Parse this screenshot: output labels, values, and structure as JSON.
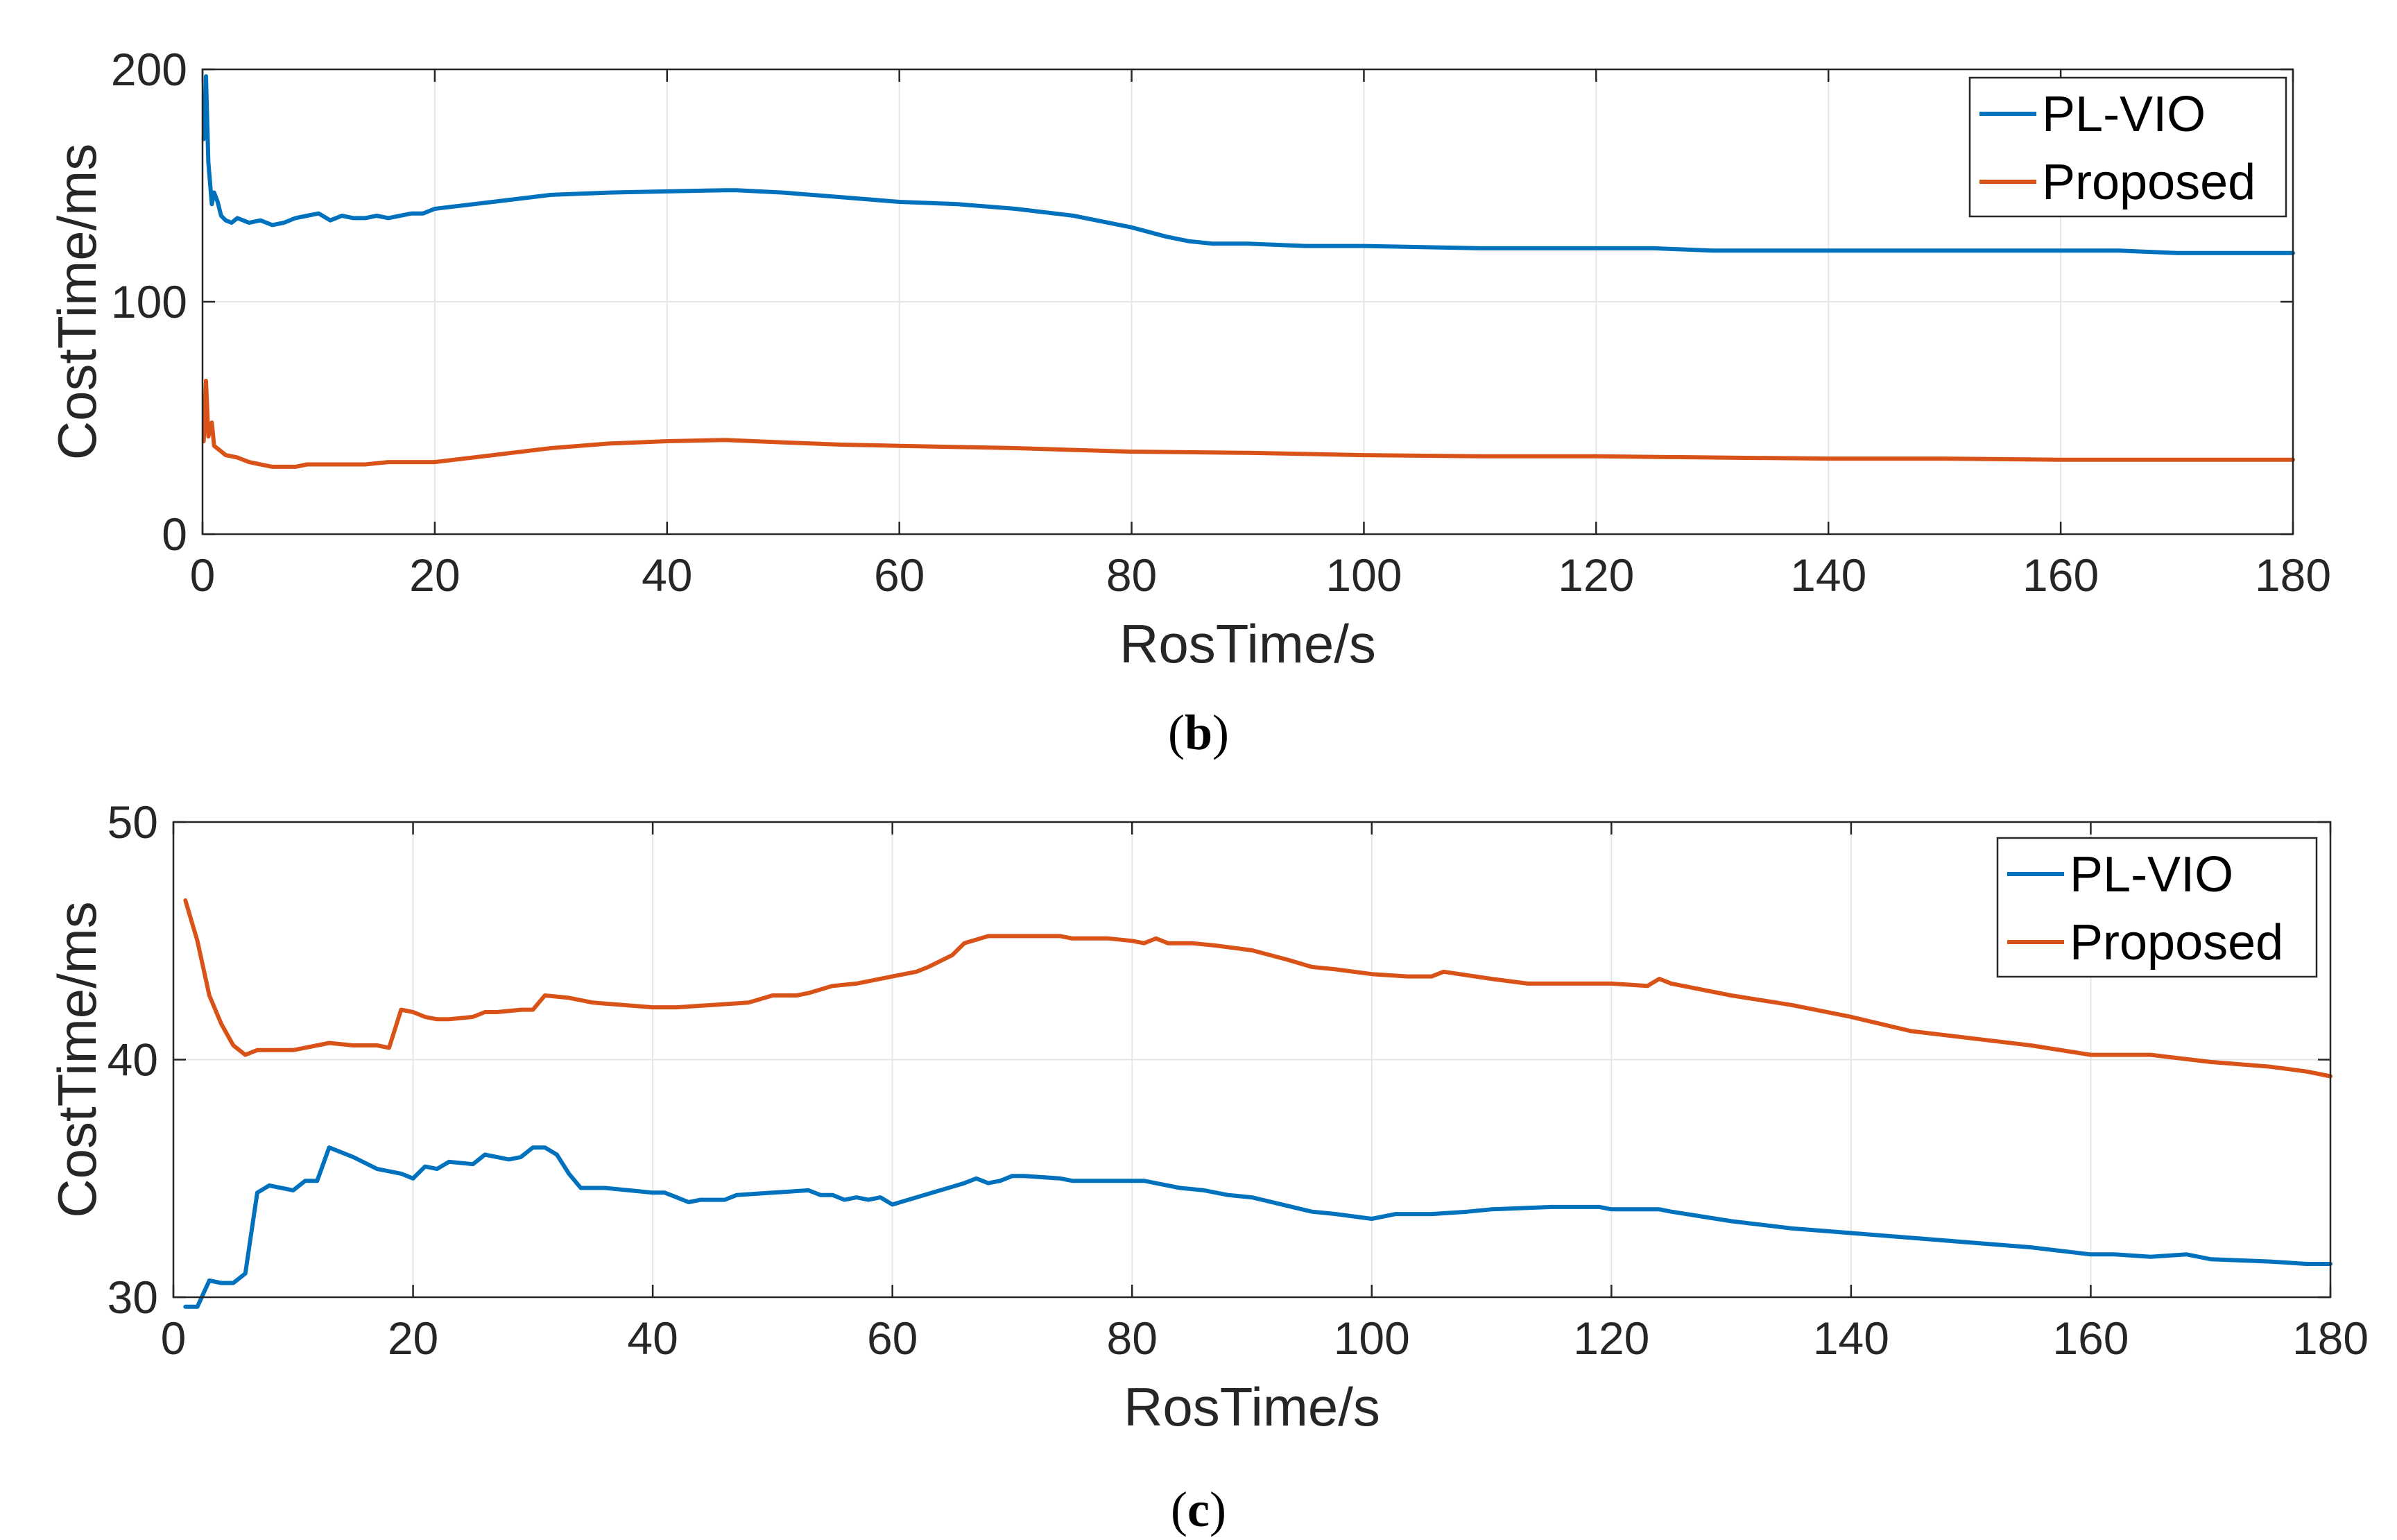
{
  "chart_data": [
    {
      "type": "line",
      "panel_label": "b",
      "xlabel": "RosTime/s",
      "ylabel": "CostTime/ms",
      "xlim": [
        0,
        180
      ],
      "ylim": [
        0,
        200
      ],
      "xticks": [
        0,
        20,
        40,
        60,
        80,
        100,
        120,
        140,
        160,
        180
      ],
      "yticks": [
        0,
        100,
        200
      ],
      "grid": true,
      "legend_position": "top-right",
      "series": [
        {
          "name": "PL-VIO",
          "color": "#0072BD",
          "x": [
            0.1,
            0.3,
            0.5,
            0.8,
            1.0,
            1.3,
            1.6,
            2.0,
            2.5,
            3.0,
            3.5,
            4.0,
            5.0,
            6.0,
            7.0,
            8.0,
            9.0,
            10.0,
            11.0,
            12.0,
            13.0,
            14.0,
            15.0,
            16.0,
            17.0,
            18.0,
            19.0,
            20.0,
            25.0,
            30.0,
            35.0,
            40.0,
            45.0,
            46.0,
            50.0,
            55.0,
            60.0,
            65.0,
            70.0,
            75.0,
            80.0,
            83.0,
            85.0,
            87.0,
            90.0,
            95.0,
            100.0,
            110.0,
            120.0,
            125.0,
            130.0,
            140.0,
            150.0,
            155.0,
            160.0,
            165.0,
            170.0,
            175.0,
            180.0
          ],
          "y": [
            170,
            197,
            160,
            142,
            147,
            143,
            137,
            135,
            134,
            136,
            135,
            134,
            135,
            133,
            134,
            136,
            137,
            138,
            135,
            137,
            136,
            136,
            137,
            136,
            137,
            138,
            138,
            140,
            143,
            146,
            147,
            147.5,
            148,
            148,
            147,
            145,
            143,
            142,
            140,
            137,
            132,
            128,
            126,
            125,
            125,
            124,
            124,
            123,
            123,
            123,
            122,
            122,
            122,
            122,
            122,
            122,
            121,
            121,
            121
          ]
        },
        {
          "name": "Proposed",
          "color": "#D95319",
          "x": [
            0.1,
            0.3,
            0.5,
            0.8,
            1.0,
            1.5,
            2.0,
            3.0,
            4.0,
            5.0,
            6.0,
            7.0,
            8.0,
            9.0,
            10.0,
            12.0,
            14.0,
            15.0,
            16.0,
            18.0,
            20.0,
            25.0,
            30.0,
            35.0,
            40.0,
            45.0,
            50.0,
            55.0,
            60.0,
            70.0,
            80.0,
            90.0,
            100.0,
            110.0,
            120.0,
            130.0,
            140.0,
            150.0,
            160.0,
            170.0,
            180.0
          ],
          "y": [
            40,
            66,
            42,
            48,
            38,
            36,
            34,
            33,
            31,
            30,
            29,
            29,
            29,
            30,
            30,
            30,
            30,
            30.5,
            31,
            31,
            31,
            34,
            37,
            39,
            40,
            40.5,
            39.5,
            38.5,
            38,
            37,
            35.5,
            35,
            34,
            33.5,
            33.5,
            33,
            32.5,
            32.5,
            32,
            32,
            32
          ]
        }
      ]
    },
    {
      "type": "line",
      "panel_label": "c",
      "xlabel": "RosTime/s",
      "ylabel": "CostTime/ms",
      "xlim": [
        0,
        180
      ],
      "ylim": [
        30,
        50
      ],
      "xticks": [
        0,
        20,
        40,
        60,
        80,
        100,
        120,
        140,
        160,
        180
      ],
      "yticks": [
        30,
        40,
        50
      ],
      "grid": true,
      "legend_position": "top-right",
      "series": [
        {
          "name": "PL-VIO",
          "color": "#0072BD",
          "x": [
            1,
            2,
            3,
            4,
            5,
            6,
            7,
            8,
            10,
            11,
            12,
            13,
            15,
            17,
            19,
            20,
            21,
            22,
            23,
            25,
            26,
            28,
            29,
            30,
            31,
            32,
            33,
            34,
            36,
            38,
            40,
            41,
            42,
            43,
            44,
            46,
            47,
            50,
            53,
            54,
            55,
            56,
            57,
            58,
            59,
            60,
            62,
            64,
            66,
            67,
            68,
            69,
            70,
            71,
            74,
            75,
            78,
            81,
            84,
            86,
            88,
            90,
            95,
            97,
            100,
            102,
            105,
            108,
            110,
            115,
            119,
            120,
            124,
            125,
            130,
            135,
            140,
            145,
            150,
            155,
            160,
            162,
            165,
            168,
            170,
            175,
            178,
            180
          ],
          "y": [
            29.6,
            29.6,
            30.7,
            30.6,
            30.6,
            31.0,
            34.4,
            34.7,
            34.5,
            34.9,
            34.9,
            36.3,
            35.9,
            35.4,
            35.2,
            35.0,
            35.5,
            35.4,
            35.7,
            35.6,
            36.0,
            35.8,
            35.9,
            36.3,
            36.3,
            36.0,
            35.2,
            34.6,
            34.6,
            34.5,
            34.4,
            34.4,
            34.2,
            34.0,
            34.1,
            34.1,
            34.3,
            34.4,
            34.5,
            34.3,
            34.3,
            34.1,
            34.2,
            34.1,
            34.2,
            33.9,
            34.2,
            34.5,
            34.8,
            35.0,
            34.8,
            34.9,
            35.1,
            35.1,
            35.0,
            34.9,
            34.9,
            34.9,
            34.6,
            34.5,
            34.3,
            34.2,
            33.6,
            33.5,
            33.3,
            33.5,
            33.5,
            33.6,
            33.7,
            33.8,
            33.8,
            33.7,
            33.7,
            33.6,
            33.2,
            32.9,
            32.7,
            32.5,
            32.3,
            32.1,
            31.8,
            31.8,
            31.7,
            31.8,
            31.6,
            31.5,
            31.4,
            31.4
          ]
        },
        {
          "name": "Proposed",
          "color": "#D95319",
          "x": [
            1,
            2,
            3,
            4,
            5,
            6,
            7,
            8,
            10,
            12,
            13,
            15,
            17,
            18,
            19,
            20,
            21,
            22,
            23,
            25,
            26,
            27,
            29,
            30,
            31,
            33,
            35,
            40,
            42,
            45,
            48,
            50,
            52,
            53,
            55,
            57,
            60,
            62,
            63,
            65,
            66,
            68,
            70,
            72,
            74,
            75,
            78,
            80,
            81,
            82,
            83,
            85,
            87,
            90,
            93,
            95,
            97,
            100,
            103,
            105,
            106,
            110,
            113,
            115,
            118,
            120,
            123,
            124,
            125,
            130,
            135,
            140,
            145,
            150,
            155,
            160,
            165,
            170,
            175,
            178,
            180
          ],
          "y": [
            46.7,
            45.0,
            42.7,
            41.5,
            40.6,
            40.2,
            40.4,
            40.4,
            40.4,
            40.6,
            40.7,
            40.6,
            40.6,
            40.5,
            42.1,
            42.0,
            41.8,
            41.7,
            41.7,
            41.8,
            42.0,
            42.0,
            42.1,
            42.1,
            42.7,
            42.6,
            42.4,
            42.2,
            42.2,
            42.3,
            42.4,
            42.7,
            42.7,
            42.8,
            43.1,
            43.2,
            43.5,
            43.7,
            43.9,
            44.4,
            44.9,
            45.2,
            45.2,
            45.2,
            45.2,
            45.1,
            45.1,
            45.0,
            44.9,
            45.1,
            44.9,
            44.9,
            44.8,
            44.6,
            44.2,
            43.9,
            43.8,
            43.6,
            43.5,
            43.5,
            43.7,
            43.4,
            43.2,
            43.2,
            43.2,
            43.2,
            43.1,
            43.4,
            43.2,
            42.7,
            42.3,
            41.8,
            41.2,
            40.9,
            40.6,
            40.2,
            40.2,
            39.9,
            39.7,
            39.5,
            39.3
          ]
        }
      ]
    }
  ]
}
